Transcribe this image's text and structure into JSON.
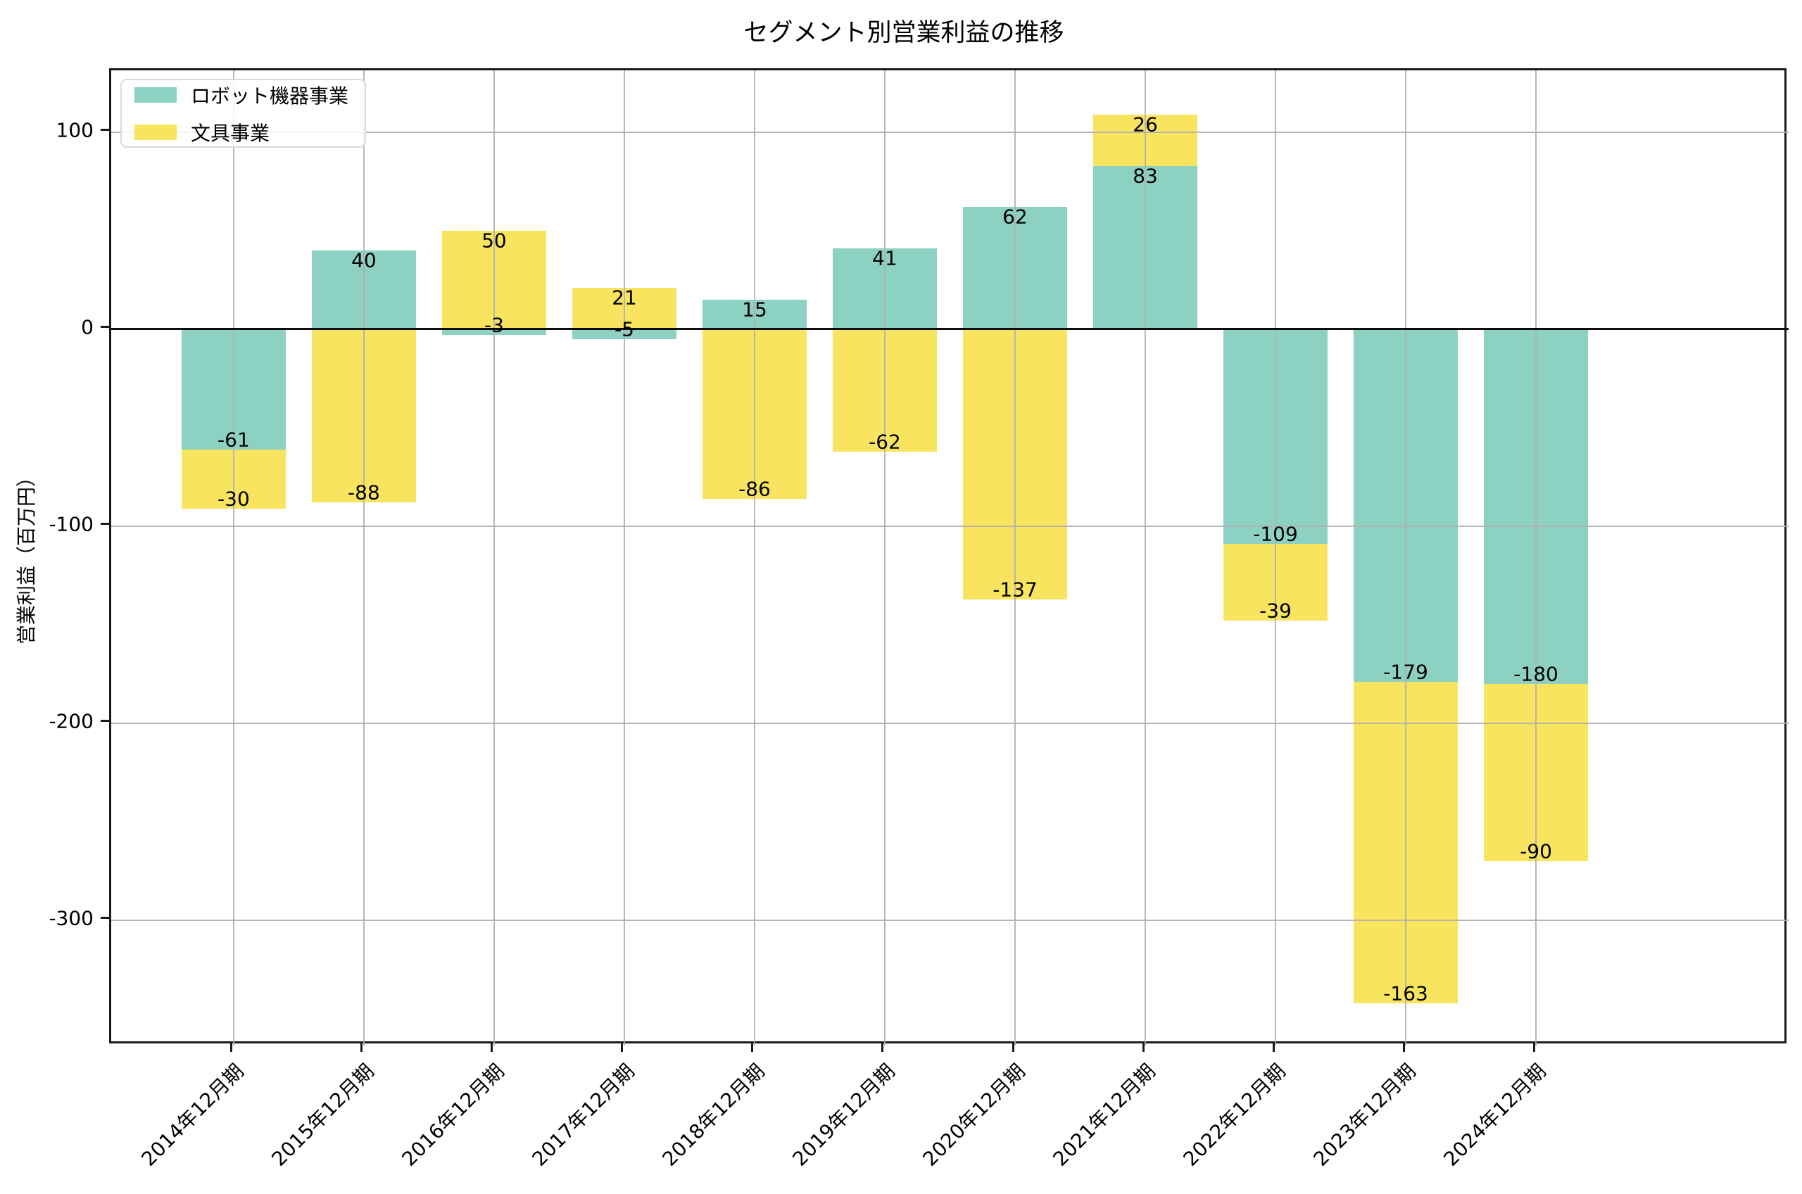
{
  "title": "セグメント別営業利益の推移",
  "y_axis": {
    "label": "営業利益（百万円）",
    "ticks": [
      100,
      0,
      -100,
      -200,
      -300
    ]
  },
  "legend": {
    "position": "upper left",
    "items": [
      {
        "label": "ロボット機器事業",
        "color": "#8cd1c2"
      },
      {
        "label": "文具事業",
        "color": "#f9e45f"
      }
    ]
  },
  "chart_data": {
    "type": "bar",
    "stacked": true,
    "title": "セグメント別営業利益の推移",
    "xlabel": "",
    "ylabel": "営業利益（百万円）",
    "categories": [
      "2014年12月期",
      "2015年12月期",
      "2016年12月期",
      "2017年12月期",
      "2018年12月期",
      "2019年12月期",
      "2020年12月期",
      "2021年12月期",
      "2022年12月期",
      "2023年12月期",
      "2024年12月期"
    ],
    "series": [
      {
        "name": "ロボット機器事業",
        "color": "#8cd1c2",
        "values": [
          -61,
          40,
          -3,
          -5,
          15,
          41,
          62,
          83,
          -109,
          -179,
          -180
        ]
      },
      {
        "name": "文具事業",
        "color": "#f9e45f",
        "values": [
          -30,
          -88,
          50,
          21,
          -86,
          -62,
          -137,
          26,
          -39,
          -163,
          -90
        ]
      }
    ],
    "stack_totals": [
      -91,
      -48,
      47,
      16,
      -71,
      -21,
      -75,
      109,
      -148,
      -342,
      -270
    ],
    "yticks": [
      100,
      0,
      -100,
      -200,
      -300
    ],
    "ylim": [
      -363.6,
      131.4
    ],
    "grid": true,
    "grid_color": "#b0b0b0",
    "zero_line": true,
    "value_labels": "inside-end",
    "legend_position": "upper left",
    "bar_width_fraction": 0.8
  },
  "colors": {
    "spine": "#1a1a1a",
    "text": "#000000",
    "grid": "#b0b0b0",
    "legend_border": "#d9d9d9",
    "background": "#ffffff"
  }
}
